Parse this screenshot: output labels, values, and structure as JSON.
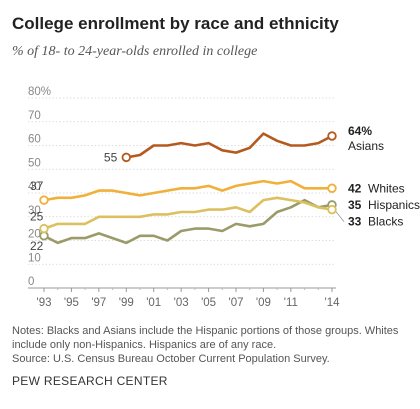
{
  "header": {
    "title": "College enrollment by race and ethnicity",
    "subtitle": "% of 18- to 24-year-olds enrolled in college"
  },
  "chart_data": {
    "type": "line",
    "x": [
      1993,
      1994,
      1995,
      1996,
      1997,
      1998,
      1999,
      2000,
      2001,
      2002,
      2003,
      2004,
      2005,
      2006,
      2007,
      2008,
      2009,
      2010,
      2011,
      2012,
      2013,
      2014
    ],
    "x_tick_labels": [
      "'93",
      "'95",
      "'97",
      "'99",
      "'01",
      "'03",
      "'05",
      "'07",
      "'09",
      "'11",
      "'14"
    ],
    "x_tick_values": [
      1993,
      1995,
      1997,
      1999,
      2001,
      2003,
      2005,
      2007,
      2009,
      2011,
      2014
    ],
    "y_tick_labels": [
      "80%",
      "70",
      "60",
      "50",
      "40",
      "30",
      "20",
      "10",
      "0"
    ],
    "y_tick_values": [
      80,
      70,
      60,
      50,
      40,
      30,
      20,
      10,
      0
    ],
    "ylim": [
      0,
      80
    ],
    "grid": true,
    "series": [
      {
        "name": "Asians",
        "color": "#b55a1e",
        "x": [
          1999,
          2000,
          2001,
          2002,
          2003,
          2004,
          2005,
          2006,
          2007,
          2008,
          2009,
          2010,
          2011,
          2012,
          2013,
          2014
        ],
        "values": [
          55,
          56,
          60,
          60,
          61,
          60,
          61,
          58,
          57,
          59,
          65,
          62,
          60,
          60,
          61,
          64
        ],
        "start_label": "55",
        "end_value_label": "64%",
        "end_name_label": "Asians"
      },
      {
        "name": "Whites",
        "color": "#f0b03c",
        "x": [
          1993,
          1994,
          1995,
          1996,
          1997,
          1998,
          1999,
          2000,
          2001,
          2002,
          2003,
          2004,
          2005,
          2006,
          2007,
          2008,
          2009,
          2010,
          2011,
          2012,
          2013,
          2014
        ],
        "values": [
          37,
          38,
          38,
          39,
          41,
          41,
          40,
          39,
          40,
          41,
          42,
          42,
          43,
          41,
          43,
          44,
          45,
          44,
          45,
          42,
          42,
          42
        ],
        "start_label": "37",
        "end_value_label": "42",
        "end_name_label": "Whites"
      },
      {
        "name": "Hispanics",
        "color": "#9b9b6a",
        "x": [
          1993,
          1994,
          1995,
          1996,
          1997,
          1998,
          1999,
          2000,
          2001,
          2002,
          2003,
          2004,
          2005,
          2006,
          2007,
          2008,
          2009,
          2010,
          2011,
          2012,
          2013,
          2014
        ],
        "values": [
          22,
          19,
          21,
          21,
          23,
          21,
          19,
          22,
          22,
          20,
          24,
          25,
          25,
          24,
          27,
          26,
          27,
          32,
          34,
          37,
          34,
          35
        ],
        "start_label": "22",
        "end_value_label": "35",
        "end_name_label": "Hispanics"
      },
      {
        "name": "Blacks",
        "color": "#dcc060",
        "x": [
          1993,
          1994,
          1995,
          1996,
          1997,
          1998,
          1999,
          2000,
          2001,
          2002,
          2003,
          2004,
          2005,
          2006,
          2007,
          2008,
          2009,
          2010,
          2011,
          2012,
          2013,
          2014
        ],
        "values": [
          25,
          27,
          27,
          27,
          30,
          30,
          30,
          30,
          31,
          31,
          32,
          32,
          33,
          33,
          34,
          32,
          37,
          38,
          37,
          36,
          34,
          33
        ],
        "start_label": "25",
        "end_value_label": "33",
        "end_name_label": "Blacks"
      }
    ]
  },
  "notes": {
    "line1": "Notes: Blacks and Asians include the Hispanic portions of those groups. Whites include only non-Hispanics. Hispanics are of any race.",
    "line2": "Source: U.S. Census Bureau October Current Population Survey."
  },
  "footer": {
    "org": "PEW RESEARCH CENTER"
  }
}
